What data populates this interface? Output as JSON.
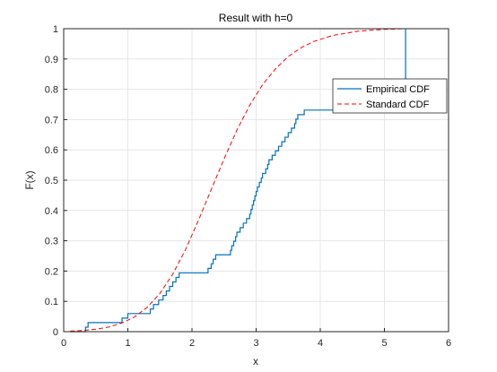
{
  "chart_data": {
    "type": "line",
    "title": "Result with h=0",
    "xlabel": "x",
    "ylabel": "F(x)",
    "xlim": [
      0,
      6
    ],
    "ylim": [
      0,
      1
    ],
    "x_ticks": [
      0,
      1,
      2,
      3,
      4,
      5,
      6
    ],
    "x_tick_labels": [
      "0",
      "1",
      "2",
      "3",
      "4",
      "5",
      "6"
    ],
    "y_ticks": [
      0,
      0.1,
      0.2,
      0.3,
      0.4,
      0.5,
      0.6,
      0.7,
      0.8,
      0.9,
      1
    ],
    "y_tick_labels": [
      "0",
      "0.1",
      "0.2",
      "0.3",
      "0.4",
      "0.5",
      "0.6",
      "0.7",
      "0.8",
      "0.9",
      "1"
    ],
    "grid": true,
    "legend_position": "top-right",
    "series": [
      {
        "name": "Empirical CDF",
        "style": "step",
        "color": "#0072BD",
        "x": [
          0.1,
          0.34,
          0.38,
          0.91,
          1.0,
          1.35,
          1.4,
          1.48,
          1.55,
          1.6,
          1.65,
          1.7,
          1.75,
          1.8,
          2.25,
          2.3,
          2.33,
          2.37,
          2.6,
          2.62,
          2.65,
          2.68,
          2.7,
          2.75,
          2.8,
          2.85,
          2.9,
          2.92,
          2.94,
          2.96,
          2.98,
          3.0,
          3.02,
          3.05,
          3.08,
          3.1,
          3.15,
          3.18,
          3.2,
          3.25,
          3.3,
          3.35,
          3.4,
          3.45,
          3.5,
          3.55,
          3.6,
          3.62,
          3.65,
          3.75,
          5.33
        ],
        "y": [
          0.0,
          0.0149,
          0.0299,
          0.0448,
          0.0597,
          0.0746,
          0.0896,
          0.1045,
          0.1194,
          0.1343,
          0.1493,
          0.1642,
          0.1791,
          0.194,
          0.209,
          0.2239,
          0.2388,
          0.2537,
          0.2687,
          0.2836,
          0.2985,
          0.3134,
          0.3284,
          0.3433,
          0.3582,
          0.3731,
          0.3881,
          0.403,
          0.4179,
          0.4328,
          0.4478,
          0.4627,
          0.4776,
          0.4925,
          0.5075,
          0.5224,
          0.5373,
          0.5522,
          0.5672,
          0.5821,
          0.597,
          0.6119,
          0.6269,
          0.6418,
          0.6567,
          0.6716,
          0.6866,
          0.7015,
          0.7164,
          0.7313,
          1.0
        ]
      },
      {
        "name": "Standard CDF",
        "style": "dashed",
        "color": "#FF0000",
        "x": [
          0.1,
          0.3,
          0.5,
          0.7,
          0.9,
          1.1,
          1.3,
          1.5,
          1.7,
          1.9,
          2.1,
          2.3,
          2.5,
          2.7,
          2.9,
          3.1,
          3.3,
          3.5,
          3.7,
          3.9,
          4.2,
          4.6,
          5.0,
          5.33
        ],
        "y": [
          0.002,
          0.004,
          0.008,
          0.015,
          0.028,
          0.048,
          0.08,
          0.126,
          0.19,
          0.271,
          0.367,
          0.469,
          0.57,
          0.665,
          0.747,
          0.815,
          0.867,
          0.908,
          0.937,
          0.958,
          0.978,
          0.992,
          0.998,
          1.0
        ]
      }
    ]
  }
}
